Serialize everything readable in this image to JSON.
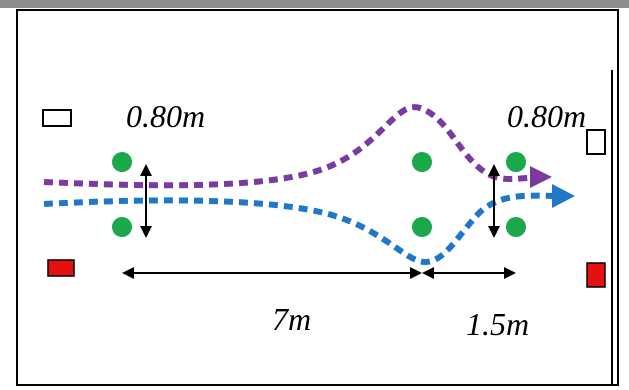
{
  "labels": {
    "gap_left": "0.80m",
    "gap_right": "0.80m",
    "distance_main": "7m",
    "distance_end": "1.5m"
  },
  "colors": {
    "purple_path": "#7a3aa0",
    "blue_path": "#1f77c8",
    "cone": "#1aa84a",
    "start_marker": "#ffffff",
    "finish_marker": "#e61010",
    "arrows": "#000000"
  }
}
